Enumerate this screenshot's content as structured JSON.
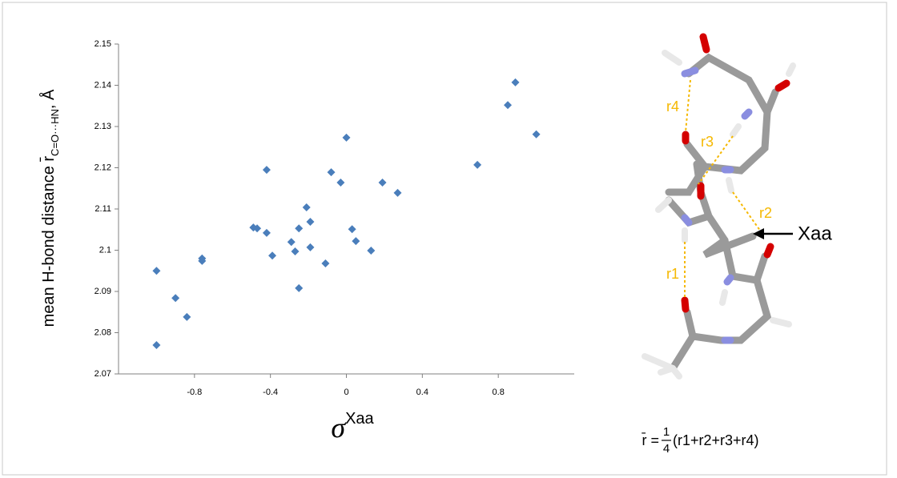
{
  "chart_data": {
    "type": "scatter",
    "x_label": {
      "symbol": "σ",
      "superscript": "Xaa"
    },
    "y_label": {
      "main": "mean H-bond distance r̄",
      "subscript": "C=O···HN",
      "suffix": ", Å"
    },
    "x": [
      -1.0,
      -1.0,
      -0.9,
      -0.84,
      -0.76,
      -0.76,
      -0.49,
      -0.47,
      -0.42,
      -0.42,
      -0.39,
      -0.29,
      -0.27,
      -0.25,
      -0.25,
      -0.21,
      -0.19,
      -0.19,
      -0.11,
      -0.08,
      -0.03,
      0.0,
      0.03,
      0.05,
      0.13,
      0.19,
      0.27,
      0.69,
      0.85,
      0.89,
      1.0
    ],
    "values": [
      2.095,
      2.077,
      2.0884,
      2.0838,
      2.098,
      2.0974,
      2.1055,
      2.1053,
      2.1042,
      2.1195,
      2.0987,
      2.102,
      2.0997,
      2.1053,
      2.0908,
      2.1104,
      2.1069,
      2.1007,
      2.0968,
      2.1189,
      2.1164,
      2.1273,
      2.1051,
      2.1022,
      2.0999,
      2.1164,
      2.1139,
      2.1207,
      2.1352,
      2.1407,
      2.1281
    ],
    "color": "#4a7ebb",
    "xlim": [
      -1.2,
      1.2
    ],
    "xticks": [
      -0.8,
      -0.4,
      0,
      0.4,
      0.8
    ],
    "ylim": [
      2.07,
      2.15
    ],
    "yticks": [
      2.07,
      2.08,
      2.09,
      2.1,
      2.11,
      2.12,
      2.13,
      2.14,
      2.15
    ],
    "grid": false
  },
  "diagram": {
    "bond_labels": [
      "r1",
      "r2",
      "r3",
      "r4"
    ],
    "pointer_label": "Xaa",
    "formula": {
      "lhs": "r̄ =",
      "numerator": "1",
      "denominator": "4",
      "rhs": "(r1+r2+r3+r4)"
    }
  }
}
